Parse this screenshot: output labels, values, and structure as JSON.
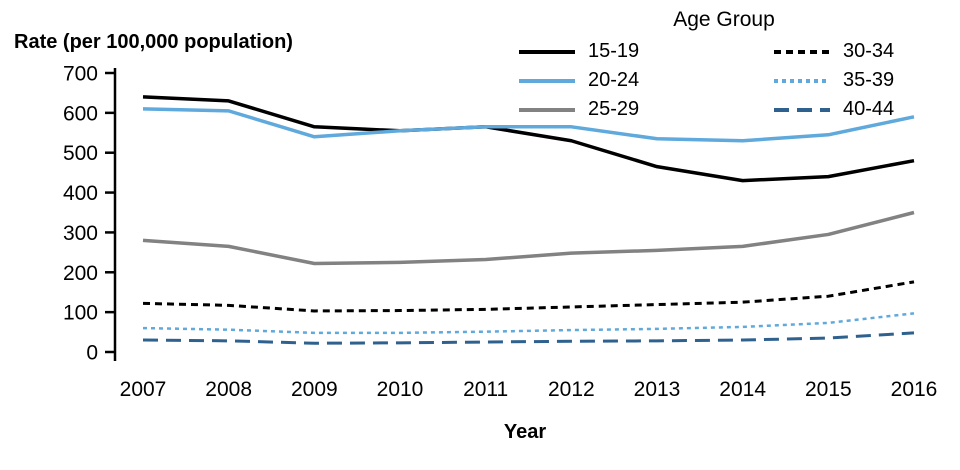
{
  "chart_data": {
    "type": "line",
    "title": "",
    "ylabel": "Rate (per 100,000 population)",
    "xlabel": "Year",
    "legend_title": "Age Group",
    "legend_position": "top-right",
    "grid": false,
    "x": [
      2007,
      2008,
      2009,
      2010,
      2011,
      2012,
      2013,
      2014,
      2015,
      2016
    ],
    "ylim": [
      0,
      700
    ],
    "yticks": [
      0,
      100,
      200,
      300,
      400,
      500,
      600,
      700
    ],
    "series": [
      {
        "name": "15-19",
        "color": "#000000",
        "line_style": "solid",
        "values": [
          640,
          630,
          565,
          555,
          565,
          530,
          465,
          430,
          440,
          480
        ]
      },
      {
        "name": "20-24",
        "color": "#5FA9DC",
        "line_style": "solid",
        "values": [
          610,
          605,
          540,
          555,
          565,
          565,
          535,
          530,
          545,
          590
        ]
      },
      {
        "name": "25-29",
        "color": "#828282",
        "line_style": "solid",
        "values": [
          280,
          265,
          222,
          225,
          232,
          248,
          255,
          265,
          295,
          350
        ]
      },
      {
        "name": "30-34",
        "color": "#000000",
        "line_style": "dashed",
        "values": [
          122,
          117,
          103,
          104,
          107,
          113,
          119,
          125,
          140,
          176
        ]
      },
      {
        "name": "35-39",
        "color": "#5FA9DC",
        "line_style": "fine-dashed",
        "values": [
          60,
          56,
          48,
          48,
          51,
          55,
          58,
          63,
          73,
          97
        ]
      },
      {
        "name": "40-44",
        "color": "#2F618E",
        "line_style": "long-dashed",
        "values": [
          30,
          28,
          22,
          23,
          25,
          27,
          28,
          30,
          35,
          48
        ]
      }
    ]
  }
}
